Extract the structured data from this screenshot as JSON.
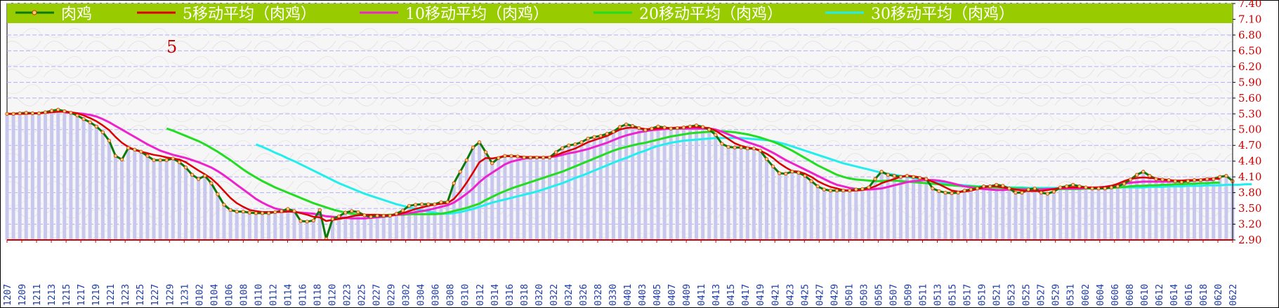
{
  "chart_data": {
    "type": "line",
    "big_label": "5",
    "colors": {
      "legend_bg": "#99cc00",
      "price": "#0a7a0a",
      "ma5": "#dd0000",
      "ma10": "#ee22cc",
      "ma20": "#22dd22",
      "ma30": "#22eeee",
      "bars": "#c8c8ee",
      "grid": "#b0b0ff",
      "axis_text_right": "#cc0000",
      "axis_text_bottom": "#1a3aa8"
    },
    "legend": [
      {
        "key": "price",
        "label": "肉鸡"
      },
      {
        "key": "ma5",
        "label": "5移动平均（肉鸡）"
      },
      {
        "key": "ma10",
        "label": "10移动平均（肉鸡）"
      },
      {
        "key": "ma20",
        "label": "20移动平均（肉鸡）"
      },
      {
        "key": "ma30",
        "label": "30移动平均（肉鸡）"
      }
    ],
    "ylim": [
      2.9,
      7.4
    ],
    "y_ticks": [
      "2.90",
      "3.20",
      "3.50",
      "3.80",
      "4.10",
      "4.40",
      "4.70",
      "5.00",
      "5.30",
      "5.60",
      "5.90",
      "6.20",
      "6.50",
      "6.80",
      "7.10",
      "7.40"
    ],
    "x_labels": [
      "1207",
      "1209",
      "1211",
      "1213",
      "1215",
      "1217",
      "1219",
      "1221",
      "1223",
      "1225",
      "1227",
      "1229",
      "1231",
      "0102",
      "0104",
      "0106",
      "0108",
      "0110",
      "0112",
      "0114",
      "0116",
      "0118",
      "0120",
      "0223",
      "0225",
      "0227",
      "0229",
      "0302",
      "0304",
      "0306",
      "0308",
      "0310",
      "0312",
      "0314",
      "0316",
      "0318",
      "0320",
      "0322",
      "0324",
      "0326",
      "0328",
      "0330",
      "0401",
      "0403",
      "0405",
      "0407",
      "0409",
      "0411",
      "0413",
      "0415",
      "0417",
      "0419",
      "0421",
      "0423",
      "0425",
      "0427",
      "0429",
      "0501",
      "0503",
      "0505",
      "0507",
      "0509",
      "0511",
      "0513",
      "0515",
      "0517",
      "0519",
      "0521",
      "0523",
      "0525",
      "0527",
      "0529",
      "0531",
      "0602",
      "0604",
      "0606",
      "0608",
      "0610",
      "0612",
      "0614",
      "0616",
      "0618",
      "0620",
      "0622"
    ],
    "price": [
      5.3,
      5.3,
      5.31,
      5.32,
      5.31,
      5.31,
      5.33,
      5.36,
      5.38,
      5.35,
      5.32,
      5.27,
      5.2,
      5.14,
      5.06,
      4.95,
      4.79,
      4.5,
      4.43,
      4.65,
      4.62,
      4.58,
      4.5,
      4.42,
      4.42,
      4.42,
      4.45,
      4.38,
      4.28,
      4.14,
      4.06,
      4.12,
      3.98,
      3.77,
      3.57,
      3.47,
      3.44,
      3.44,
      3.42,
      3.41,
      3.41,
      3.41,
      3.43,
      3.45,
      3.49,
      3.45,
      3.26,
      3.25,
      3.27,
      3.47,
      2.92,
      3.3,
      3.35,
      3.42,
      3.45,
      3.43,
      3.37,
      3.34,
      3.36,
      3.36,
      3.36,
      3.4,
      3.46,
      3.55,
      3.57,
      3.58,
      3.58,
      3.58,
      3.62,
      3.62,
      3.98,
      4.2,
      4.42,
      4.66,
      4.76,
      4.57,
      4.36,
      4.46,
      4.5,
      4.5,
      4.49,
      4.47,
      4.47,
      4.47,
      4.47,
      4.47,
      4.57,
      4.65,
      4.7,
      4.72,
      4.76,
      4.83,
      4.86,
      4.88,
      4.92,
      4.96,
      5.05,
      5.1,
      5.07,
      5.03,
      4.99,
      5.02,
      5.06,
      5.04,
      5.02,
      5.03,
      5.04,
      5.06,
      5.08,
      5.05,
      5.0,
      4.9,
      4.73,
      4.67,
      4.66,
      4.66,
      4.64,
      4.64,
      4.6,
      4.44,
      4.3,
      4.17,
      4.16,
      4.2,
      4.18,
      4.12,
      4.02,
      3.92,
      3.86,
      3.84,
      3.84,
      3.84,
      3.84,
      3.86,
      3.87,
      3.9,
      4.06,
      4.2,
      4.14,
      4.12,
      4.1,
      4.12,
      4.1,
      4.08,
      4.06,
      3.88,
      3.83,
      3.8,
      3.79,
      3.8,
      3.84,
      3.86,
      3.88,
      3.92,
      3.92,
      3.95,
      3.93,
      3.88,
      3.8,
      3.8,
      3.86,
      3.88,
      3.8,
      3.78,
      3.82,
      3.9,
      3.92,
      3.95,
      3.92,
      3.9,
      3.88,
      3.88,
      3.88,
      3.9,
      3.92,
      3.97,
      4.05,
      4.14,
      4.2,
      4.12,
      4.06,
      4.05,
      4.04,
      4.02,
      4.0,
      4.02,
      4.04,
      4.04,
      4.06,
      4.06,
      4.1,
      4.12,
      4.02
    ],
    "ma5": [
      5.3,
      5.3,
      5.3,
      5.3,
      5.31,
      5.31,
      5.32,
      5.33,
      5.34,
      5.34,
      5.33,
      5.31,
      5.27,
      5.22,
      5.16,
      5.08,
      4.99,
      4.86,
      4.75,
      4.67,
      4.61,
      4.58,
      4.55,
      4.52,
      4.5,
      4.47,
      4.45,
      4.43,
      4.38,
      4.3,
      4.22,
      4.15,
      4.07,
      3.96,
      3.83,
      3.7,
      3.6,
      3.53,
      3.47,
      3.45,
      3.43,
      3.43,
      3.43,
      3.43,
      3.44,
      3.44,
      3.41,
      3.38,
      3.34,
      3.33,
      3.26,
      3.28,
      3.3,
      3.32,
      3.35,
      3.37,
      3.38,
      3.38,
      3.38,
      3.37,
      3.37,
      3.38,
      3.41,
      3.45,
      3.49,
      3.52,
      3.55,
      3.57,
      3.59,
      3.6,
      3.68,
      3.82,
      3.99,
      4.18,
      4.38,
      4.46,
      4.45,
      4.47,
      4.5,
      4.49,
      4.49,
      4.48,
      4.48,
      4.48,
      4.47,
      4.48,
      4.51,
      4.56,
      4.6,
      4.64,
      4.7,
      4.76,
      4.8,
      4.84,
      4.88,
      4.94,
      5.0,
      5.03,
      5.04,
      5.03,
      5.01,
      5.01,
      5.02,
      5.03,
      5.03,
      5.04,
      5.04,
      5.05,
      5.05,
      5.04,
      5.03,
      4.98,
      4.9,
      4.82,
      4.74,
      4.69,
      4.66,
      4.64,
      4.6,
      4.54,
      4.46,
      4.36,
      4.28,
      4.21,
      4.2,
      4.16,
      4.1,
      4.02,
      3.96,
      3.91,
      3.88,
      3.85,
      3.84,
      3.84,
      3.85,
      3.88,
      3.92,
      3.98,
      4.02,
      4.06,
      4.1,
      4.12,
      4.11,
      4.09,
      4.05,
      4.01,
      3.96,
      3.9,
      3.84,
      3.82,
      3.82,
      3.84,
      3.87,
      3.9,
      3.92,
      3.92,
      3.9,
      3.88,
      3.86,
      3.84,
      3.83,
      3.83,
      3.83,
      3.85,
      3.87,
      3.89,
      3.9,
      3.9,
      3.9,
      3.9,
      3.9,
      3.9,
      3.91,
      3.93,
      3.97,
      4.02,
      4.06,
      4.08,
      4.09,
      4.08,
      4.07,
      4.05,
      4.04,
      4.03,
      4.03,
      4.04,
      4.04,
      4.05,
      4.06,
      4.07,
      4.06
    ],
    "ma10": [
      null,
      null,
      null,
      null,
      null,
      null,
      null,
      null,
      null,
      5.33,
      5.32,
      5.31,
      5.3,
      5.28,
      5.25,
      5.2,
      5.14,
      5.07,
      5.0,
      4.93,
      4.86,
      4.79,
      4.72,
      4.66,
      4.6,
      4.56,
      4.52,
      4.49,
      4.46,
      4.42,
      4.38,
      4.33,
      4.28,
      4.21,
      4.13,
      4.04,
      3.95,
      3.86,
      3.77,
      3.68,
      3.61,
      3.55,
      3.5,
      3.47,
      3.45,
      3.43,
      3.42,
      3.41,
      3.4,
      3.38,
      3.35,
      3.34,
      3.33,
      3.32,
      3.31,
      3.31,
      3.31,
      3.32,
      3.33,
      3.34,
      3.36,
      3.38,
      3.39,
      3.41,
      3.43,
      3.45,
      3.47,
      3.5,
      3.53,
      3.56,
      3.61,
      3.69,
      3.78,
      3.88,
      4.0,
      4.1,
      4.18,
      4.26,
      4.34,
      4.39,
      4.42,
      4.45,
      4.46,
      4.47,
      4.47,
      4.48,
      4.49,
      4.52,
      4.55,
      4.57,
      4.6,
      4.63,
      4.67,
      4.71,
      4.75,
      4.8,
      4.85,
      4.89,
      4.92,
      4.95,
      4.97,
      4.99,
      5.0,
      5.01,
      5.02,
      5.02,
      5.02,
      5.02,
      5.02,
      5.02,
      5.02,
      5.0,
      4.96,
      4.91,
      4.86,
      4.81,
      4.76,
      4.72,
      4.68,
      4.62,
      4.56,
      4.49,
      4.42,
      4.36,
      4.3,
      4.24,
      4.18,
      4.12,
      4.06,
      4.0,
      3.95,
      3.92,
      3.89,
      3.87,
      3.86,
      3.86,
      3.87,
      3.88,
      3.91,
      3.94,
      3.97,
      4.0,
      4.02,
      4.03,
      4.04,
      4.04,
      4.03,
      4.01,
      3.98,
      3.95,
      3.92,
      3.9,
      3.88,
      3.87,
      3.86,
      3.85,
      3.85,
      3.86,
      3.86,
      3.86,
      3.86,
      3.86,
      3.86,
      3.87,
      3.87,
      3.88,
      3.88,
      3.88,
      3.88,
      3.89,
      3.89,
      3.9,
      3.91,
      3.93,
      3.95,
      3.97,
      3.99,
      4.0,
      4.01,
      4.01,
      4.01,
      4.01,
      4.01,
      4.01,
      4.02,
      4.02,
      4.03,
      4.04,
      4.04,
      4.04
    ],
    "ma20": [
      null,
      null,
      null,
      null,
      null,
      null,
      null,
      null,
      null,
      null,
      null,
      null,
      null,
      null,
      null,
      null,
      null,
      null,
      null,
      null,
      null,
      null,
      null,
      null,
      null,
      5.02,
      4.98,
      4.93,
      4.88,
      4.83,
      4.78,
      4.72,
      4.65,
      4.58,
      4.5,
      4.42,
      4.33,
      4.24,
      4.16,
      4.09,
      4.02,
      3.96,
      3.9,
      3.85,
      3.8,
      3.75,
      3.7,
      3.65,
      3.6,
      3.56,
      3.52,
      3.48,
      3.45,
      3.42,
      3.4,
      3.38,
      3.37,
      3.37,
      3.37,
      3.37,
      3.38,
      3.38,
      3.38,
      3.39,
      3.39,
      3.39,
      3.39,
      3.39,
      3.4,
      3.42,
      3.45,
      3.48,
      3.51,
      3.55,
      3.59,
      3.66,
      3.72,
      3.78,
      3.83,
      3.88,
      3.92,
      3.96,
      4.0,
      4.04,
      4.08,
      4.12,
      4.16,
      4.2,
      4.25,
      4.3,
      4.35,
      4.4,
      4.45,
      4.5,
      4.55,
      4.6,
      4.64,
      4.67,
      4.7,
      4.73,
      4.75,
      4.78,
      4.81,
      4.84,
      4.87,
      4.89,
      4.91,
      4.93,
      4.94,
      4.95,
      4.96,
      4.97,
      4.97,
      4.96,
      4.95,
      4.93,
      4.91,
      4.88,
      4.85,
      4.81,
      4.77,
      4.72,
      4.66,
      4.6,
      4.53,
      4.46,
      4.39,
      4.32,
      4.26,
      4.2,
      4.14,
      4.1,
      4.07,
      4.05,
      4.04,
      4.03,
      4.02,
      4.02,
      4.03,
      4.03,
      4.02,
      4.01,
      4.0,
      3.99,
      3.98,
      3.97,
      3.96,
      3.95,
      3.94,
      3.93,
      3.92,
      3.92,
      3.91,
      3.91,
      3.9,
      3.9,
      3.89,
      3.89,
      3.88,
      3.88,
      3.87,
      3.87,
      3.87,
      3.87,
      3.87,
      3.87,
      3.87,
      3.87,
      3.87,
      3.88,
      3.88,
      3.88,
      3.89,
      3.89,
      3.9,
      3.91,
      3.92,
      3.93,
      3.93,
      3.94,
      3.94,
      3.95,
      3.95,
      3.96,
      3.96,
      3.97,
      3.97,
      3.98,
      3.98,
      3.99,
      3.99
    ],
    "ma30": [
      null,
      null,
      null,
      null,
      null,
      null,
      null,
      null,
      null,
      null,
      null,
      null,
      null,
      null,
      null,
      null,
      null,
      null,
      null,
      null,
      null,
      null,
      null,
      null,
      null,
      null,
      null,
      null,
      null,
      null,
      null,
      null,
      null,
      null,
      null,
      null,
      null,
      null,
      null,
      4.72,
      4.67,
      4.62,
      4.56,
      4.51,
      4.45,
      4.4,
      4.34,
      4.28,
      4.22,
      4.16,
      4.1,
      4.04,
      3.98,
      3.93,
      3.88,
      3.83,
      3.78,
      3.74,
      3.7,
      3.66,
      3.62,
      3.58,
      3.55,
      3.52,
      3.49,
      3.46,
      3.44,
      3.42,
      3.4,
      3.4,
      3.41,
      3.43,
      3.46,
      3.49,
      3.53,
      3.57,
      3.61,
      3.64,
      3.67,
      3.7,
      3.73,
      3.76,
      3.79,
      3.82,
      3.86,
      3.9,
      3.94,
      3.98,
      4.03,
      4.08,
      4.12,
      4.17,
      4.22,
      4.27,
      4.32,
      4.37,
      4.42,
      4.46,
      4.51,
      4.56,
      4.6,
      4.65,
      4.69,
      4.72,
      4.75,
      4.77,
      4.79,
      4.8,
      4.81,
      4.82,
      4.83,
      4.84,
      4.84,
      4.84,
      4.84,
      4.84,
      4.83,
      4.82,
      4.81,
      4.8,
      4.78,
      4.75,
      4.72,
      4.68,
      4.64,
      4.6,
      4.56,
      4.52,
      4.48,
      4.44,
      4.4,
      4.36,
      4.33,
      4.3,
      4.27,
      4.24,
      4.21,
      4.18,
      4.16,
      4.14,
      4.12,
      4.1,
      4.08,
      4.06,
      4.04,
      4.02,
      4.0,
      3.98,
      3.96,
      3.95,
      3.94,
      3.93,
      3.92,
      3.92,
      3.91,
      3.91,
      3.9,
      3.9,
      3.9,
      3.9,
      3.89,
      3.89,
      3.89,
      3.89,
      3.89,
      3.89,
      3.89,
      3.89,
      3.89,
      3.89,
      3.89,
      3.89,
      3.89,
      3.89,
      3.9,
      3.9,
      3.9,
      3.9,
      3.9,
      3.91,
      3.91,
      3.91,
      3.92,
      3.92,
      3.92,
      3.93,
      3.93,
      3.93,
      3.94,
      3.94,
      3.94,
      3.95,
      3.95,
      3.95,
      3.96,
      3.96
    ]
  }
}
